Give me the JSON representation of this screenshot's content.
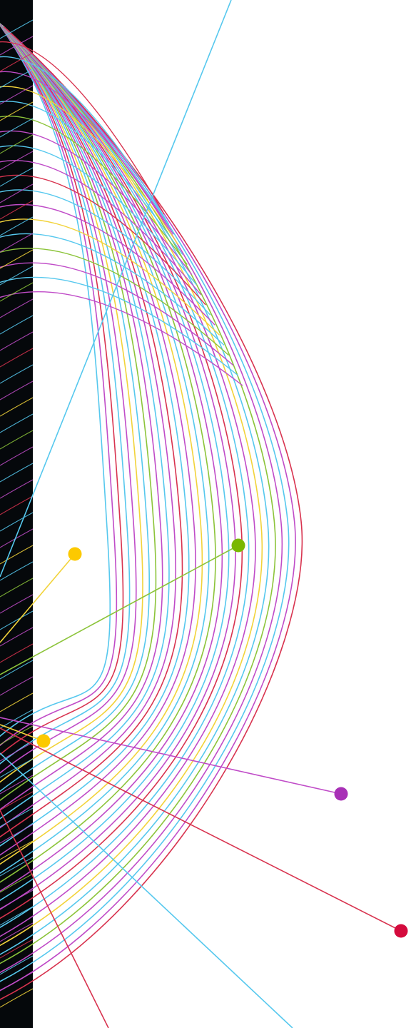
{
  "artwork": {
    "kind": "decorative abstract line art",
    "background_color": "#ffffff",
    "strip_color": "#05080b",
    "palette": {
      "cyan": "#56c8ee",
      "magenta": "#c04cc8",
      "red": "#d8334f",
      "yellow": "#f2d33a",
      "green": "#8cc43a",
      "purple": "#a830b6",
      "dot_red": "#d40b3d",
      "dot_yellow": "#fcc900",
      "dot_green": "#7ab800"
    },
    "curve_color_cycle": [
      "cyan",
      "magenta",
      "red",
      "cyan",
      "magenta",
      "yellow",
      "cyan",
      "green",
      "magenta"
    ],
    "curve_count": 30,
    "dots": [
      {
        "name": "yellow-dot-upper",
        "color": "dot_yellow"
      },
      {
        "name": "green-dot",
        "color": "dot_green"
      },
      {
        "name": "yellow-dot-lower",
        "color": "dot_yellow"
      },
      {
        "name": "purple-dot",
        "color": "purple"
      },
      {
        "name": "red-dot",
        "color": "dot_red"
      }
    ]
  }
}
